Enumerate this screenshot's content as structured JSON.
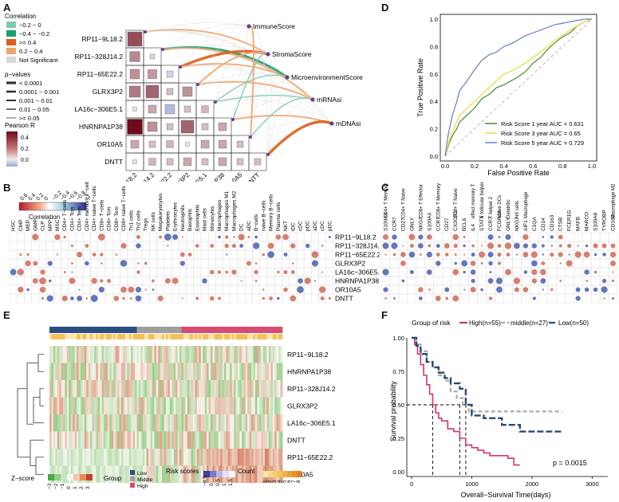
{
  "panels": {
    "A": "A",
    "B": "B",
    "C": "C",
    "D": "D",
    "E": "E",
    "F": "F"
  },
  "panelA": {
    "genes": [
      "RP11−9L18.2",
      "RP11−328J14.2",
      "RP11−65E22.2",
      "GLRX3P2",
      "LA16c−306E5.1",
      "HNRNPA1P38",
      "OR10A5",
      "DNTT"
    ],
    "targets": [
      "ImmuneScore",
      "StromaScore",
      "MicroenvironmentScore",
      "mRNAsi",
      "mDNAsi"
    ],
    "legend_correlation_title": "Correlation",
    "legend_correlation": [
      {
        "label": "−0.2 ~ 0",
        "color": "#7fc9b0"
      },
      {
        "label": "−0.4 ~ −0.2",
        "color": "#1a9e74"
      },
      {
        "label": ">= 0.4",
        "color": "#d9601c"
      },
      {
        "label": "0.2 ~ 0.4",
        "color": "#eda56e"
      },
      {
        "label": "Not Significant",
        "color": "#d9d9d9"
      }
    ],
    "legend_p_title": "p−values",
    "legend_p": [
      "< 0.0001",
      "0.0001 ~ 0.001",
      "0.001 ~ 0.01",
      "0.01 ~ 0.05",
      ">= 0.05"
    ],
    "legend_pearson_title": "Pearson R",
    "pearson_ticks": [
      "0.4",
      "0.2",
      "0.0"
    ],
    "matrix_values": [
      [
        0.35
      ],
      [
        0.22,
        0.05
      ],
      [
        0.2,
        0.18,
        -0.1
      ],
      [
        0.25,
        0.3,
        0.1,
        0.2
      ],
      [
        0.02,
        0.15,
        -0.2,
        0.1,
        0.12
      ],
      [
        0.5,
        0.2,
        0.1,
        0.3,
        0.1,
        0.15
      ],
      [
        0.15,
        0.1,
        0.12,
        0.02,
        0.15,
        0.15,
        0.1
      ],
      [
        0.02,
        0.12,
        0.1,
        0.15,
        0.1,
        0.15,
        0.1,
        0.1
      ]
    ]
  },
  "panelB": {
    "legend_title": "Correlation",
    "legend_ticks": [
      "0.6",
      "0.4",
      "0.2",
      "0",
      "−0.2",
      "−0.4",
      "−0.6",
      "−0.8",
      "−1"
    ],
    "columns": [
      "HSC",
      "CMP",
      "MEP",
      "GMP",
      "CLP",
      "MPP",
      "MSC",
      "CD4+ T−cells",
      "CD4+ Tcm",
      "CD4+ Tem",
      "CD4+ memory T−cells",
      "CD4+ naive T−cells",
      "CD8+ T−cells",
      "CD8+ Tcm",
      "CD8+ Tem",
      "CD8+ naive T−cells",
      "Th1 cells",
      "Th2 cells",
      "Tregs",
      "NK cells",
      "Megakaryocytes",
      "Platelets",
      "Erythrocytes",
      "Neutrophils",
      "Basophils",
      "Eosinophils",
      "Mast cells",
      "Monocytes",
      "Macrophages",
      "Macrophages M1",
      "Macrophages M2",
      "DC",
      "aDC",
      "B−cells",
      "naive B−cells",
      "Memory B−cells",
      "Plasma cells",
      "NKT",
      "iDC",
      "cDC",
      "pDC",
      "aDC",
      "cDC",
      "pDC"
    ],
    "rows": [
      "RP11−9L18.2",
      "RP11−328J14.2",
      "RP11−65E22.2",
      "GLRX3P2",
      "LA16c−306E5.1",
      "HNRNPA1P38",
      "OR10A5",
      "DNTT"
    ]
  },
  "panelC": {
    "groups": [
      "CD4+ T Memory",
      "CD4+ T Naive",
      "CD8+ T Effector",
      "CD8+ T Memory",
      "CD8+ T Naive",
      "effect memory T",
      "T follicular helper",
      "T helper 2",
      "active DCs",
      "Dendritic",
      "NK cells",
      "Macrophage",
      "Macrophage M2"
    ],
    "genes": [
      "S100A4",
      "CCR7",
      "CD27",
      "GNLY",
      "NKG7",
      "S100A4",
      "CCR7",
      "CD27",
      "CX3CR1",
      "BCL6",
      "IL4",
      "STAT6",
      "CCR7",
      "FCGR3A",
      "GNLY",
      "NKG7",
      "AIF1",
      "C1QA",
      "CD14",
      "CD163",
      "CTSB",
      "FCER1G",
      "MAFB",
      "MARCO",
      "S100A8",
      "TYROBP",
      "CD163"
    ]
  },
  "panelD": {
    "xlabel": "False Positive Rate",
    "ylabel": "True Positive Rate",
    "ticks": [
      "0.0",
      "0.2",
      "0.4",
      "0.6",
      "0.8",
      "1.0"
    ],
    "legend": [
      {
        "label": "Risk Score 1 year AUC = 0.631",
        "color": "#5a8f3e"
      },
      {
        "label": "Risk Score 3 year AUC = 0.65",
        "color": "#e6e04a"
      },
      {
        "label": "Risk Score 5 year AUC = 0.729",
        "color": "#6f86c8"
      }
    ]
  },
  "panelE": {
    "genes": [
      "RP11−9L18.2",
      "HNRNPA1P38",
      "RP11−328J14.2",
      "GLRX3P2",
      "LA16c−306E5.1",
      "DNTT",
      "RP11−65E22.2",
      "OR10A5"
    ],
    "legend_zscore": "Z−score",
    "zscore_ticks": [
      "−3",
      "−2",
      "−1",
      "0",
      "1",
      "2",
      "3"
    ],
    "legend_group": "Group",
    "groups": [
      {
        "label": "Low",
        "color": "#2b4f81"
      },
      {
        "label": "Middle",
        "color": "#9e9e9e"
      },
      {
        "label": "High",
        "color": "#d84a73"
      }
    ],
    "legend_risk": "Risk scores",
    "risk_ticks": [
      "−0.5",
      "0",
      "0.5",
      "1",
      "1.5"
    ],
    "legend_count": "Count",
    "count_ticks": [
      "1",
      "2",
      "3",
      "4",
      "5",
      "6",
      "7",
      "8"
    ]
  },
  "panelF": {
    "legend_title": "Group of risk",
    "legend": [
      {
        "label": "High(n=55)",
        "color": "#d6336c"
      },
      {
        "label": "middle(n=27)",
        "color": "#aaaaaa"
      },
      {
        "label": "Low(n=50)",
        "color": "#2a4a73"
      }
    ],
    "xlabel": "Overall−Survival Time(days)",
    "ylabel": "Survival probability",
    "pvalue": "p = 0.0015",
    "xticks": [
      "0",
      "1000",
      "2000",
      "3000"
    ],
    "yticks": [
      "0.00",
      "0.25",
      "0.50",
      "0.75",
      "1.00"
    ]
  },
  "chart_data": [
    {
      "type": "line",
      "title": "",
      "xlabel": "False Positive Rate",
      "ylabel": "True Positive Rate",
      "xlim": [
        0,
        1
      ],
      "ylim": [
        0,
        1
      ],
      "series": [
        {
          "name": "Risk Score 1 year AUC = 0.631",
          "x": [
            0,
            0.03,
            0.05,
            0.08,
            0.1,
            0.15,
            0.2,
            0.25,
            0.3,
            0.35,
            0.4,
            0.45,
            0.5,
            0.55,
            0.6,
            0.65,
            0.7,
            0.75,
            0.8,
            0.85,
            0.9,
            0.95,
            1.0
          ],
          "y": [
            0,
            0.1,
            0.15,
            0.2,
            0.25,
            0.3,
            0.35,
            0.42,
            0.45,
            0.5,
            0.52,
            0.55,
            0.58,
            0.62,
            0.68,
            0.72,
            0.78,
            0.83,
            0.87,
            0.9,
            0.95,
            0.98,
            1.0
          ]
        },
        {
          "name": "Risk Score 3 year AUC = 0.65",
          "x": [
            0,
            0.03,
            0.05,
            0.08,
            0.1,
            0.15,
            0.2,
            0.25,
            0.3,
            0.35,
            0.4,
            0.45,
            0.5,
            0.55,
            0.6,
            0.65,
            0.7,
            0.75,
            0.8,
            0.85,
            0.9,
            0.95,
            1.0
          ],
          "y": [
            0,
            0.12,
            0.18,
            0.25,
            0.3,
            0.35,
            0.4,
            0.45,
            0.5,
            0.55,
            0.6,
            0.62,
            0.65,
            0.68,
            0.72,
            0.76,
            0.8,
            0.85,
            0.88,
            0.92,
            0.95,
            0.98,
            1.0
          ]
        },
        {
          "name": "Risk Score 5 year AUC = 0.729",
          "x": [
            0,
            0.02,
            0.05,
            0.08,
            0.1,
            0.15,
            0.2,
            0.25,
            0.3,
            0.35,
            0.4,
            0.45,
            0.5,
            0.55,
            0.6,
            0.65,
            0.7,
            0.75,
            0.8,
            0.85,
            0.9,
            0.95,
            1.0
          ],
          "y": [
            0,
            0.15,
            0.3,
            0.4,
            0.48,
            0.55,
            0.63,
            0.7,
            0.74,
            0.76,
            0.8,
            0.82,
            0.85,
            0.88,
            0.9,
            0.92,
            0.94,
            0.96,
            0.97,
            0.98,
            0.99,
            1.0,
            1.0
          ]
        }
      ]
    },
    {
      "type": "line",
      "title": "",
      "xlabel": "Overall−Survival Time(days)",
      "ylabel": "Survival probability",
      "xlim": [
        0,
        3000
      ],
      "ylim": [
        0,
        1
      ],
      "series": [
        {
          "name": "High(n=55)",
          "x": [
            0,
            50,
            100,
            150,
            200,
            250,
            300,
            350,
            400,
            450,
            500,
            600,
            700,
            800,
            900,
            1000,
            1100,
            1200,
            1300,
            1400,
            1500,
            1600,
            1700,
            1800
          ],
          "y": [
            1,
            0.95,
            0.88,
            0.8,
            0.72,
            0.65,
            0.58,
            0.5,
            0.44,
            0.4,
            0.38,
            0.32,
            0.3,
            0.25,
            0.2,
            0.18,
            0.16,
            0.14,
            0.12,
            0.12,
            0.12,
            0.1,
            0.05,
            0.05
          ]
        },
        {
          "name": "middle(n=27)",
          "x": [
            0,
            80,
            150,
            250,
            350,
            450,
            550,
            650,
            750,
            850,
            950,
            1100,
            1500,
            2000,
            2500
          ],
          "y": [
            1,
            0.95,
            0.9,
            0.82,
            0.78,
            0.72,
            0.68,
            0.6,
            0.55,
            0.5,
            0.45,
            0.45,
            0.45,
            0.45,
            0.45
          ]
        },
        {
          "name": "Low(n=50)",
          "x": [
            0,
            80,
            150,
            250,
            350,
            450,
            550,
            650,
            800,
            900,
            1000,
            1200,
            1500,
            1800,
            2000,
            2500
          ],
          "y": [
            1,
            0.94,
            0.88,
            0.82,
            0.78,
            0.74,
            0.7,
            0.66,
            0.62,
            0.5,
            0.42,
            0.4,
            0.35,
            0.3,
            0.3,
            0.3
          ]
        }
      ],
      "annotations": [
        "p = 0.0015"
      ]
    }
  ]
}
